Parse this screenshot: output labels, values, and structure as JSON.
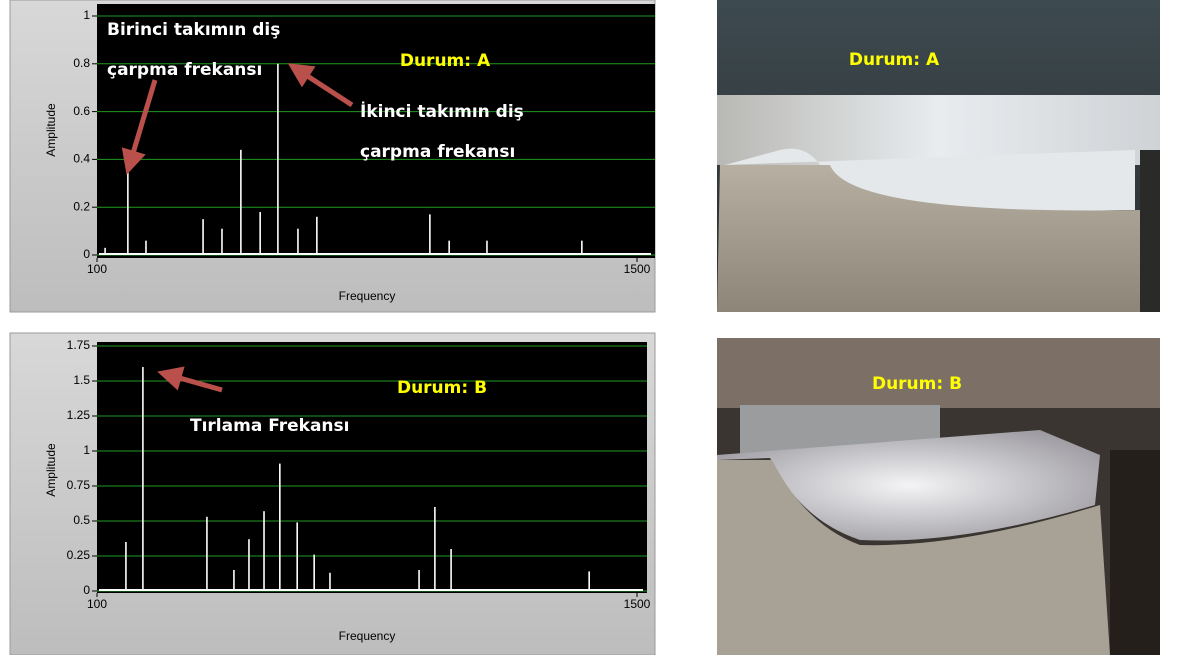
{
  "chart_data": [
    {
      "type": "stem",
      "x_label": "Frequency",
      "y_label": "Amplitude",
      "color": "#ffffff",
      "x": [
        121,
        180,
        227,
        375,
        424,
        473,
        523,
        569,
        621,
        670,
        963,
        1013,
        1111,
        1357
      ],
      "values": [
        0.03,
        0.35,
        0.06,
        0.15,
        0.11,
        0.44,
        0.18,
        0.8,
        0.11,
        0.16,
        0.17,
        0.06,
        0.06,
        0.06
      ],
      "xlim": [
        100,
        1500
      ],
      "ylim": [
        0,
        1
      ],
      "xticks": [
        100,
        1500
      ],
      "yticks": [
        0,
        0.2,
        0.4,
        0.6,
        0.8,
        1
      ],
      "grid": true,
      "grid_color": "#1f9a1f",
      "annotations": [
        {
          "lines": [
            "Birinci takımın diş",
            "çarpma frekansı"
          ],
          "color": "#ffffff"
        },
        {
          "lines": [
            "Durum: A"
          ],
          "color": "#ffff00"
        },
        {
          "lines": [
            "İkinci takımın diş",
            "çarpma frekansı"
          ],
          "color": "#ffffff"
        }
      ]
    },
    {
      "type": "stem",
      "x_label": "Frequency",
      "y_label": "Amplitude",
      "color": "#ffffff",
      "x": [
        175,
        219,
        385,
        455,
        494,
        533,
        574,
        619,
        663,
        704,
        935,
        976,
        1018,
        1376
      ],
      "values": [
        0.35,
        1.6,
        0.53,
        0.15,
        0.37,
        0.57,
        0.91,
        0.49,
        0.26,
        0.13,
        0.15,
        0.6,
        0.3,
        0.14
      ],
      "xlim": [
        100,
        1500
      ],
      "ylim": [
        0,
        1.75
      ],
      "xticks": [
        100,
        1500
      ],
      "yticks": [
        0,
        0.25,
        0.5,
        0.75,
        1,
        1.25,
        1.5,
        1.75
      ],
      "grid": true,
      "grid_color": "#1f9a1f",
      "annotations": [
        {
          "lines": [
            "Durum: B"
          ],
          "color": "#ffff00"
        },
        {
          "lines": [
            "Tırlama Frekansı"
          ],
          "color": "#ffffff"
        }
      ]
    }
  ],
  "photos": [
    {
      "label": "Durum: A",
      "color": "#ffff00"
    },
    {
      "label": "Durum: B",
      "color": "#ffff00"
    }
  ]
}
